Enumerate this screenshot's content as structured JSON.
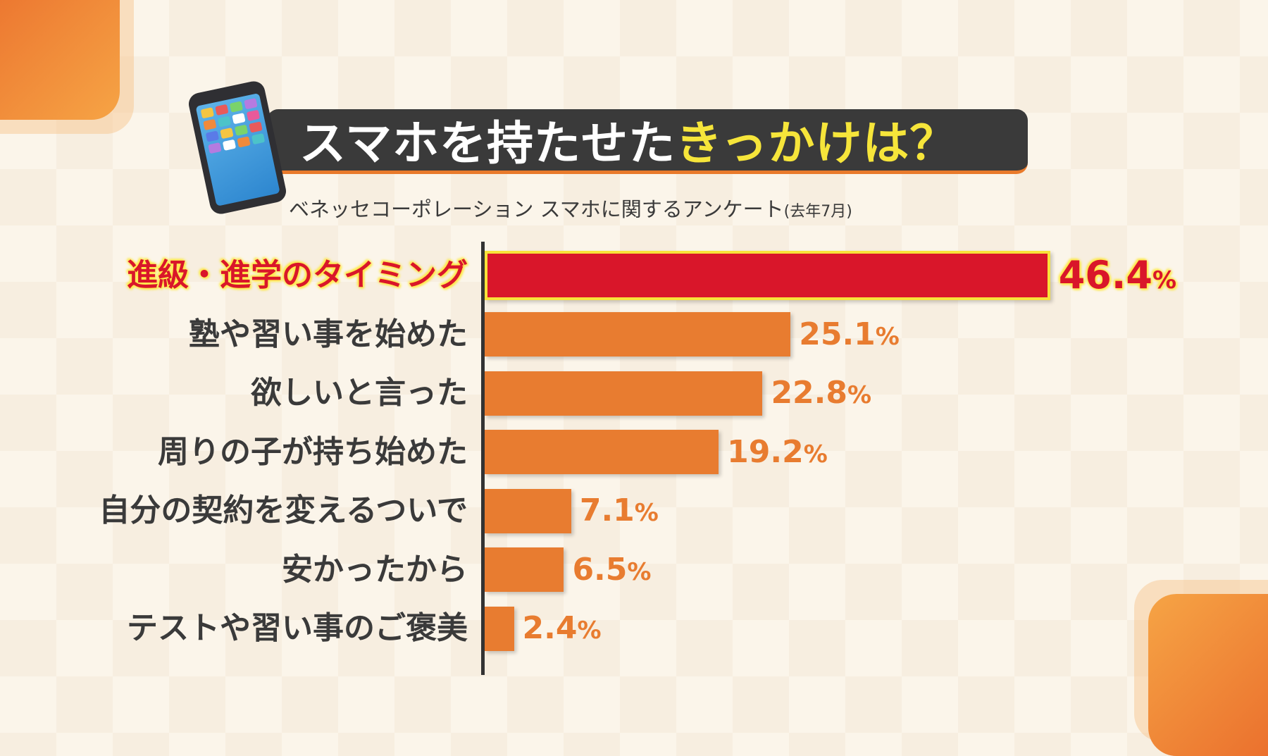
{
  "header": {
    "title_main": "スマホを持たせた",
    "title_highlight": "きっかけは？",
    "subtitle_main": "ベネッセコーポレーション スマホに関するアンケート",
    "subtitle_note": "(去年7月)"
  },
  "colors": {
    "highlight_bar": "#d9162a",
    "bar": "#e87c30",
    "title_highlight": "#f6e53a"
  },
  "chart_data": {
    "type": "bar",
    "orientation": "horizontal",
    "title": "スマホを持たせたきっかけは？",
    "subtitle": "ベネッセコーポレーション スマホに関するアンケート(去年7月)",
    "categories": [
      "進級・進学のタイミング",
      "塾や習い事を始めた",
      "欲しいと言った",
      "周りの子が持ち始めた",
      "自分の契約を変えるついで",
      "安かったから",
      "テストや習い事のご褒美"
    ],
    "values": [
      46.4,
      25.1,
      22.8,
      19.2,
      7.1,
      6.5,
      2.4
    ],
    "labels": [
      "46.4",
      "25.1",
      "22.8",
      "19.2",
      "7.1",
      "6.5",
      "2.4"
    ],
    "unit": "%",
    "highlighted_index": 0,
    "grid": false
  }
}
